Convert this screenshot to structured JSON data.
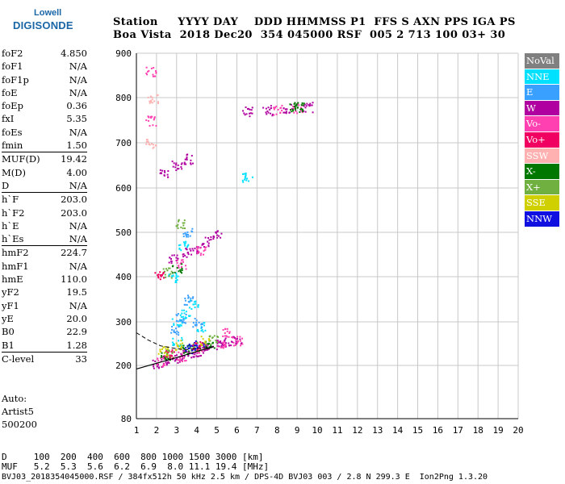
{
  "logo": {
    "line1": "Lowell",
    "line2": "DIGISONDE"
  },
  "header": {
    "row1": "Station     YYYY DAY    DDD HHMMSS P1  FFS S AXN PPS IGA PS",
    "row2": "Boa Vista  2018 Dec20  354 045000 RSF  005 2 713 100 03+ 30"
  },
  "params": [
    {
      "k": "foF2",
      "v": "4.850"
    },
    {
      "k": "foF1",
      "v": "N/A"
    },
    {
      "k": "foF1p",
      "v": "N/A"
    },
    {
      "k": "foE",
      "v": "N/A"
    },
    {
      "k": "foEp",
      "v": "0.36"
    },
    {
      "k": "fxI",
      "v": "5.35"
    },
    {
      "k": "foEs",
      "v": "N/A"
    },
    {
      "k": "fmin",
      "v": "1.50"
    },
    {
      "k": "MUF(D)",
      "v": "19.42",
      "sep": true
    },
    {
      "k": "M(D)",
      "v": "4.00"
    },
    {
      "k": "D",
      "v": "N/A"
    },
    {
      "k": "h`F",
      "v": "203.0",
      "sep": true
    },
    {
      "k": "h`F2",
      "v": "203.0"
    },
    {
      "k": "h`E",
      "v": "N/A"
    },
    {
      "k": "h`Es",
      "v": "N/A"
    },
    {
      "k": "hmF2",
      "v": "224.7",
      "sep": true
    },
    {
      "k": "hmF1",
      "v": "N/A"
    },
    {
      "k": "hmE",
      "v": "110.0"
    },
    {
      "k": "yF2",
      "v": "19.5"
    },
    {
      "k": "yF1",
      "v": "N/A"
    },
    {
      "k": "yE",
      "v": "20.0"
    },
    {
      "k": "B0",
      "v": "22.9"
    },
    {
      "k": "B1",
      "v": "1.28"
    },
    {
      "k": "C-level",
      "v": "33",
      "sep": true
    }
  ],
  "auto": {
    "line1": "Auto:",
    "line2": "Artist5",
    "line3": "500200"
  },
  "legend": [
    {
      "label": "NoVal",
      "color": "#808080"
    },
    {
      "label": "NNE",
      "color": "#00e0ff"
    },
    {
      "label": "E",
      "color": "#3aa0ff"
    },
    {
      "label": "W",
      "color": "#b000a0"
    },
    {
      "label": "Vo-",
      "color": "#ff40b0"
    },
    {
      "label": "Vo+",
      "color": "#f00060"
    },
    {
      "label": "SSW",
      "color": "#ffb0b0"
    },
    {
      "label": "X-",
      "color": "#007800"
    },
    {
      "label": "X+",
      "color": "#70b040"
    },
    {
      "label": "SSE",
      "color": "#d0d000"
    },
    {
      "label": "NNW",
      "color": "#1010e0"
    }
  ],
  "footer": {
    "d_row": "D     100  200  400  600  800 1000 1500 3000 [km]",
    "muf_row": "MUF   5.2  5.3  5.6  6.2  6.9  8.0 11.1 19.4 [MHz]",
    "file_row": "BVJ03_2018354045000.RSF / 384fx512h 50 kHz 2.5 km / DPS-4D BVJ03 003 / 2.8 N 299.3 E  Ion2Png 1.3.20"
  },
  "chart_data": {
    "type": "scatter",
    "xlim": [
      1,
      20
    ],
    "ylim": [
      80,
      900
    ],
    "x_ticks": [
      "1",
      "2",
      "3",
      "4",
      "5",
      "6",
      "7",
      "8",
      "9",
      "10",
      "11",
      "12",
      "13",
      "14",
      "15",
      "16",
      "17",
      "18",
      "19",
      "20"
    ],
    "y_ticks": [
      "80",
      "200",
      "300",
      "400",
      "500",
      "600",
      "700",
      "800",
      "900"
    ],
    "grid": true,
    "legend_placement": "right",
    "series": [
      {
        "name": "W",
        "color": "#b000a0",
        "points": [
          [
            2.0,
            205
          ],
          [
            2.5,
            212
          ],
          [
            3.0,
            218
          ],
          [
            3.5,
            225
          ],
          [
            4.0,
            232
          ],
          [
            4.5,
            240
          ],
          [
            5.0,
            248
          ],
          [
            5.5,
            255
          ],
          [
            6.0,
            262
          ],
          [
            2.8,
            440
          ],
          [
            3.5,
            455
          ],
          [
            4.0,
            465
          ],
          [
            4.5,
            480
          ],
          [
            5.0,
            495
          ],
          [
            2.4,
            635
          ],
          [
            3.0,
            650
          ],
          [
            3.6,
            665
          ],
          [
            6.5,
            771
          ],
          [
            7.5,
            773
          ],
          [
            8.5,
            776
          ],
          [
            9.5,
            780
          ]
        ]
      },
      {
        "name": "Vo-",
        "color": "#ff40b0",
        "points": [
          [
            2.2,
            210
          ],
          [
            3.2,
            222
          ],
          [
            4.2,
            238
          ],
          [
            5.2,
            250
          ],
          [
            6.0,
            258
          ],
          [
            5.5,
            275
          ],
          [
            3.2,
            430
          ],
          [
            4.2,
            460
          ],
          [
            1.7,
            750
          ],
          [
            1.7,
            860
          ],
          [
            8.0,
            774
          ],
          [
            9.0,
            778
          ]
        ]
      },
      {
        "name": "NNE",
        "color": "#00e0ff",
        "points": [
          [
            3.0,
            300
          ],
          [
            3.4,
            320
          ],
          [
            3.8,
            340
          ],
          [
            4.2,
            290
          ],
          [
            2.8,
            400
          ],
          [
            3.3,
            470
          ],
          [
            6.5,
            625
          ],
          [
            3.0,
            255
          ]
        ]
      },
      {
        "name": "E",
        "color": "#3aa0ff",
        "points": [
          [
            3.2,
            310
          ],
          [
            3.6,
            350
          ],
          [
            4.0,
            300
          ],
          [
            2.9,
            280
          ],
          [
            3.5,
            500
          ]
        ]
      },
      {
        "name": "X-",
        "color": "#007800",
        "points": [
          [
            2.4,
            222
          ],
          [
            3.5,
            238
          ],
          [
            4.6,
            252
          ],
          [
            3.0,
            420
          ],
          [
            8.8,
            782
          ],
          [
            9.1,
            779
          ]
        ]
      },
      {
        "name": "X+",
        "color": "#70b040",
        "points": [
          [
            2.6,
            230
          ],
          [
            3.9,
            245
          ],
          [
            4.8,
            260
          ],
          [
            2.5,
            410
          ],
          [
            3.2,
            520
          ]
        ]
      },
      {
        "name": "SSE",
        "color": "#d0d000",
        "points": [
          [
            2.3,
            235
          ],
          [
            3.1,
            248
          ],
          [
            4.4,
            258
          ]
        ]
      },
      {
        "name": "NNW",
        "color": "#1010e0",
        "points": [
          [
            3.6,
            240
          ],
          [
            4.1,
            248
          ]
        ]
      },
      {
        "name": "SSW",
        "color": "#ffb0b0",
        "points": [
          [
            1.7,
            700
          ],
          [
            1.8,
            800
          ]
        ]
      },
      {
        "name": "Vo+",
        "color": "#f00060",
        "points": [
          [
            2.6,
            228
          ],
          [
            4.0,
            245
          ],
          [
            2.1,
            405
          ]
        ]
      }
    ],
    "profile": [
      [
        1.0,
        192
      ],
      [
        2.0,
        205
      ],
      [
        3.0,
        218
      ],
      [
        4.0,
        232
      ],
      [
        4.85,
        243
      ]
    ],
    "profile_dashed": [
      [
        1.0,
        275
      ],
      [
        1.6,
        258
      ],
      [
        2.2,
        245
      ],
      [
        2.8,
        240
      ],
      [
        3.4,
        236
      ],
      [
        4.85,
        243
      ]
    ]
  }
}
